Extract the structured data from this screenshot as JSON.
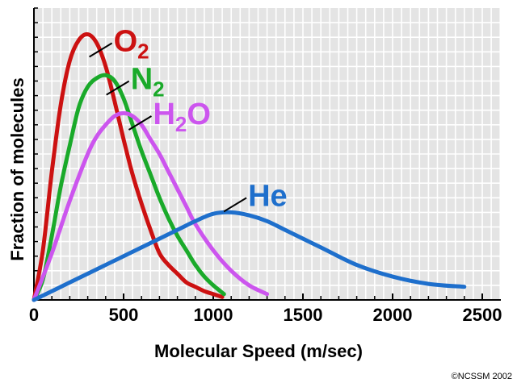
{
  "chart_data": {
    "type": "line",
    "title": "",
    "xlabel": "Molecular Speed (m/sec)",
    "ylabel": "Fraction of molecules",
    "xlim": [
      0,
      2600
    ],
    "ylim": [
      0,
      1.0
    ],
    "grid": true,
    "x_ticks": [
      "0",
      "500",
      "1000",
      "1500",
      "2000",
      "2500"
    ],
    "series": [
      {
        "name": "O",
        "subscript": "2",
        "color": "#cc1111",
        "label_anchor_x": 300,
        "label_anchor_y": 0.83,
        "x": [
          0,
          50,
          100,
          150,
          200,
          250,
          300,
          350,
          400,
          450,
          500,
          550,
          600,
          650,
          700,
          750,
          800,
          850,
          900,
          950,
          1000,
          1050
        ],
        "y": [
          0,
          0.17,
          0.44,
          0.67,
          0.82,
          0.89,
          0.91,
          0.88,
          0.8,
          0.68,
          0.55,
          0.43,
          0.33,
          0.24,
          0.16,
          0.12,
          0.09,
          0.06,
          0.045,
          0.03,
          0.02,
          0.01
        ]
      },
      {
        "name": "N",
        "subscript": "2",
        "color": "#1aaa2a",
        "label_anchor_x": 395,
        "label_anchor_y": 0.7,
        "x": [
          0,
          50,
          100,
          150,
          200,
          250,
          300,
          350,
          400,
          450,
          500,
          550,
          600,
          650,
          700,
          750,
          800,
          850,
          900,
          950,
          1000,
          1060
        ],
        "y": [
          0,
          0.07,
          0.22,
          0.39,
          0.53,
          0.66,
          0.73,
          0.76,
          0.77,
          0.75,
          0.69,
          0.6,
          0.51,
          0.43,
          0.35,
          0.28,
          0.22,
          0.17,
          0.12,
          0.08,
          0.05,
          0.02
        ]
      },
      {
        "name": "H",
        "subscript": "2",
        "suffix": "O",
        "color": "#cc55ee",
        "label_anchor_x": 520,
        "label_anchor_y": 0.58,
        "x": [
          0,
          100,
          200,
          300,
          350,
          400,
          450,
          500,
          550,
          600,
          650,
          700,
          750,
          800,
          850,
          900,
          1000,
          1100,
          1200,
          1300
        ],
        "y": [
          0,
          0.16,
          0.34,
          0.5,
          0.56,
          0.6,
          0.63,
          0.64,
          0.63,
          0.6,
          0.55,
          0.5,
          0.44,
          0.38,
          0.32,
          0.26,
          0.17,
          0.1,
          0.05,
          0.02
        ]
      },
      {
        "name": "He",
        "color": "#1e6fcc",
        "label_anchor_x": 1050,
        "label_anchor_y": 0.3,
        "x": [
          0,
          200,
          400,
          600,
          800,
          900,
          1000,
          1100,
          1200,
          1300,
          1400,
          1600,
          1800,
          2000,
          2200,
          2400
        ],
        "y": [
          0,
          0.06,
          0.12,
          0.18,
          0.24,
          0.27,
          0.295,
          0.3,
          0.29,
          0.27,
          0.24,
          0.18,
          0.12,
          0.08,
          0.055,
          0.045
        ]
      }
    ]
  },
  "copyright": "©NCSSM 2002"
}
